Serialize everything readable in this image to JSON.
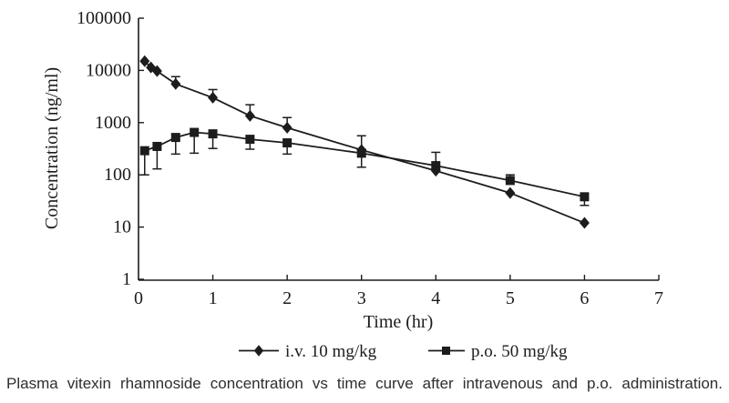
{
  "figure": {
    "caption": "Plasma vitexin rhamnoside concentration vs time curve after intravenous and p.o. administration."
  },
  "chart_data": {
    "type": "line",
    "title": "",
    "xlabel": "Time (hr)",
    "ylabel": "Concentration (ng/ml)",
    "x_ticks": [
      0,
      1,
      2,
      3,
      4,
      5,
      6,
      7
    ],
    "y_ticks": [
      1,
      10,
      100,
      1000,
      10000,
      100000
    ],
    "y_scale": "log",
    "xlim": [
      0,
      7
    ],
    "ylim": [
      1,
      100000
    ],
    "grid": false,
    "legend_position": "bottom",
    "color": "#1c1c1c",
    "series": [
      {
        "name": "i.v. 10 mg/kg",
        "marker": "diamond",
        "points": [
          {
            "t": 0.083,
            "c": 15000
          },
          {
            "t": 0.167,
            "c": 11400
          },
          {
            "t": 0.25,
            "c": 9700
          },
          {
            "t": 0.5,
            "c": 5500,
            "err_up": 7600
          },
          {
            "t": 1,
            "c": 3000,
            "err_up": 4300
          },
          {
            "t": 1.5,
            "c": 1350,
            "err_up": 2200
          },
          {
            "t": 2,
            "c": 800,
            "err_up": 1250
          },
          {
            "t": 3,
            "c": 300,
            "err_up": 560
          },
          {
            "t": 4,
            "c": 120
          },
          {
            "t": 5,
            "c": 45
          },
          {
            "t": 6,
            "c": 12
          }
        ]
      },
      {
        "name": "p.o. 50 mg/kg",
        "marker": "square",
        "points": [
          {
            "t": 0.083,
            "c": 290,
            "err_lo": 100
          },
          {
            "t": 0.25,
            "c": 350,
            "err_lo": 130
          },
          {
            "t": 0.5,
            "c": 520,
            "err_lo": 250
          },
          {
            "t": 0.75,
            "c": 650,
            "err_lo": 260
          },
          {
            "t": 1,
            "c": 610,
            "err_lo": 320
          },
          {
            "t": 1.5,
            "c": 480,
            "err_lo": 310
          },
          {
            "t": 2,
            "c": 410,
            "err_lo": 250
          },
          {
            "t": 3,
            "c": 260,
            "err_lo": 140
          },
          {
            "t": 4,
            "c": 150,
            "err_up": 270
          },
          {
            "t": 5,
            "c": 78,
            "err_up": 100
          },
          {
            "t": 6,
            "c": 38,
            "err_lo": 26
          }
        ]
      }
    ]
  }
}
